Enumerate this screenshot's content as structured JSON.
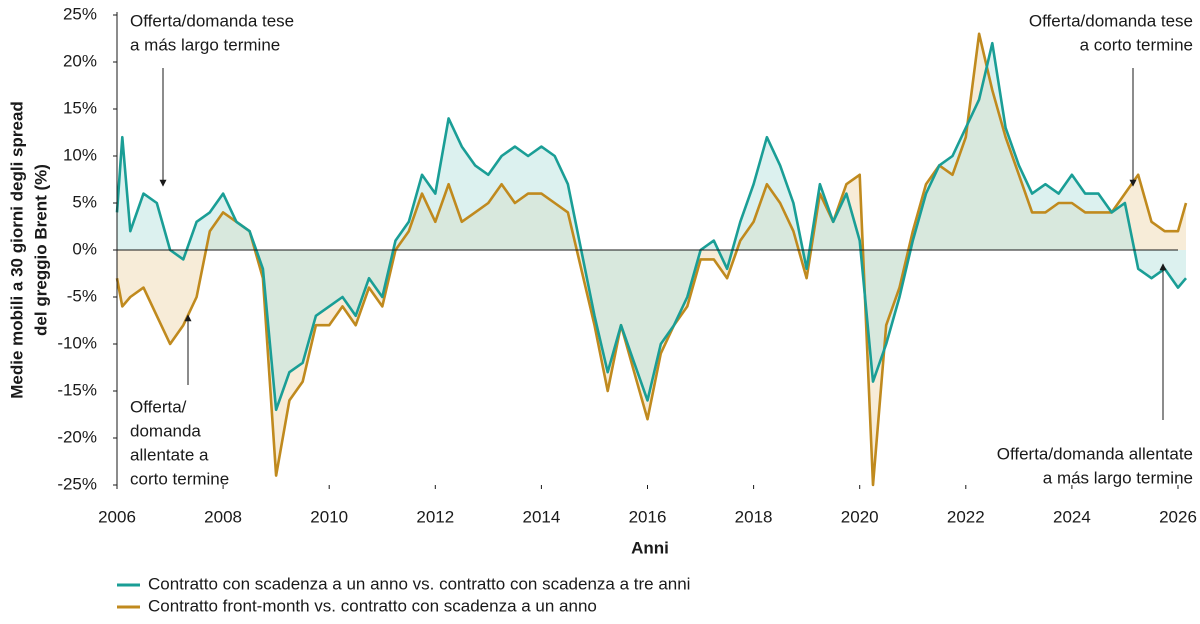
{
  "chart_data": {
    "type": "line",
    "y_label": [
      "Medie mobili a 30 giorni degli spread",
      "del greggio Brent (%)"
    ],
    "x_label": "Anni",
    "x": [
      2006.0,
      2006.1,
      2006.25,
      2006.5,
      2006.75,
      2007.0,
      2007.25,
      2007.5,
      2007.75,
      2008.0,
      2008.25,
      2008.5,
      2008.75,
      2009.0,
      2009.25,
      2009.5,
      2009.75,
      2010.0,
      2010.25,
      2010.5,
      2010.75,
      2011.0,
      2011.25,
      2011.5,
      2011.75,
      2012.0,
      2012.25,
      2012.5,
      2012.75,
      2013.0,
      2013.25,
      2013.5,
      2013.75,
      2014.0,
      2014.25,
      2014.5,
      2014.75,
      2015.0,
      2015.25,
      2015.5,
      2015.75,
      2016.0,
      2016.25,
      2016.5,
      2016.75,
      2017.0,
      2017.25,
      2017.5,
      2017.75,
      2018.0,
      2018.25,
      2018.5,
      2018.75,
      2019.0,
      2019.25,
      2019.5,
      2019.75,
      2020.0,
      2020.25,
      2020.5,
      2020.75,
      2021.0,
      2021.25,
      2021.5,
      2021.75,
      2022.0,
      2022.25,
      2022.5,
      2022.75,
      2023.0,
      2023.25,
      2023.5,
      2023.75,
      2024.0,
      2024.25,
      2024.5,
      2024.75,
      2025.0,
      2025.25,
      2025.5,
      2025.75,
      2026.0,
      2026.15
    ],
    "series": [
      {
        "name": "Contratto con scadenza a un anno vs. contratto con scadenza a tre anni",
        "color": "#1a9e96",
        "fill": "#bfe6e1",
        "values": [
          4,
          12,
          2,
          6,
          5,
          0,
          -1,
          3,
          4,
          6,
          3,
          2,
          -2,
          -17,
          -13,
          -12,
          -7,
          -6,
          -5,
          -7,
          -3,
          -5,
          1,
          3,
          8,
          6,
          14,
          11,
          9,
          8,
          10,
          11,
          10,
          11,
          10,
          7,
          0,
          -7,
          -13,
          -8,
          -12,
          -16,
          -10,
          -8,
          -5,
          0,
          1,
          -2,
          3,
          7,
          12,
          9,
          5,
          -2,
          7,
          3,
          6,
          1,
          -14,
          -10,
          -5,
          1,
          6,
          9,
          10,
          13,
          16,
          22,
          13,
          9,
          6,
          7,
          6,
          8,
          6,
          6,
          4,
          5,
          -2,
          -3,
          -2,
          -4,
          -3
        ]
      },
      {
        "name": "Contratto front-month vs. contratto con scadenza a un anno",
        "color": "#c08a1e",
        "fill": "#f1dcb8",
        "values": [
          -3,
          -6,
          -5,
          -4,
          -7,
          -10,
          -8,
          -5,
          2,
          4,
          3,
          2,
          -3,
          -24,
          -16,
          -14,
          -8,
          -8,
          -6,
          -8,
          -4,
          -6,
          0,
          2,
          6,
          3,
          7,
          3,
          4,
          5,
          7,
          5,
          6,
          6,
          5,
          4,
          -2,
          -8,
          -15,
          -8,
          -13,
          -18,
          -11,
          -8,
          -6,
          -1,
          -1,
          -3,
          1,
          3,
          7,
          5,
          2,
          -3,
          6,
          3,
          7,
          8,
          -25,
          -8,
          -4,
          2,
          7,
          9,
          8,
          12,
          23,
          17,
          12,
          8,
          4,
          4,
          5,
          5,
          4,
          4,
          4,
          6,
          8,
          3,
          2,
          2,
          5
        ]
      }
    ],
    "xlim": [
      2006,
      2026.2
    ],
    "xticks": [
      2006,
      2008,
      2010,
      2012,
      2014,
      2016,
      2018,
      2020,
      2022,
      2024,
      2026
    ],
    "ylim": [
      -25,
      25
    ],
    "yticks": [
      {
        "value": 25,
        "label": "25%"
      },
      {
        "value": 20,
        "label": "20%"
      },
      {
        "value": 15,
        "label": "15%"
      },
      {
        "value": 10,
        "label": "10%"
      },
      {
        "value": 5,
        "label": "5%"
      },
      {
        "value": 0,
        "label": "0%"
      },
      {
        "value": -5,
        "label": "-5%"
      },
      {
        "value": -10,
        "label": "-10%"
      },
      {
        "value": -15,
        "label": "-15%"
      },
      {
        "value": -20,
        "label": "-20%"
      },
      {
        "value": -25,
        "label": "-25%"
      }
    ],
    "grid": false,
    "annotations": [
      {
        "lines": [
          "Offerta/domanda tese",
          "a más largo termine"
        ]
      },
      {
        "lines": [
          "Offerta/",
          "domanda",
          "allentate a",
          "corto termine"
        ]
      },
      {
        "lines": [
          "Offerta/domanda tese",
          "a corto termine"
        ]
      },
      {
        "lines": [
          "Offerta/domanda allentate",
          "a más largo termine"
        ]
      }
    ]
  }
}
